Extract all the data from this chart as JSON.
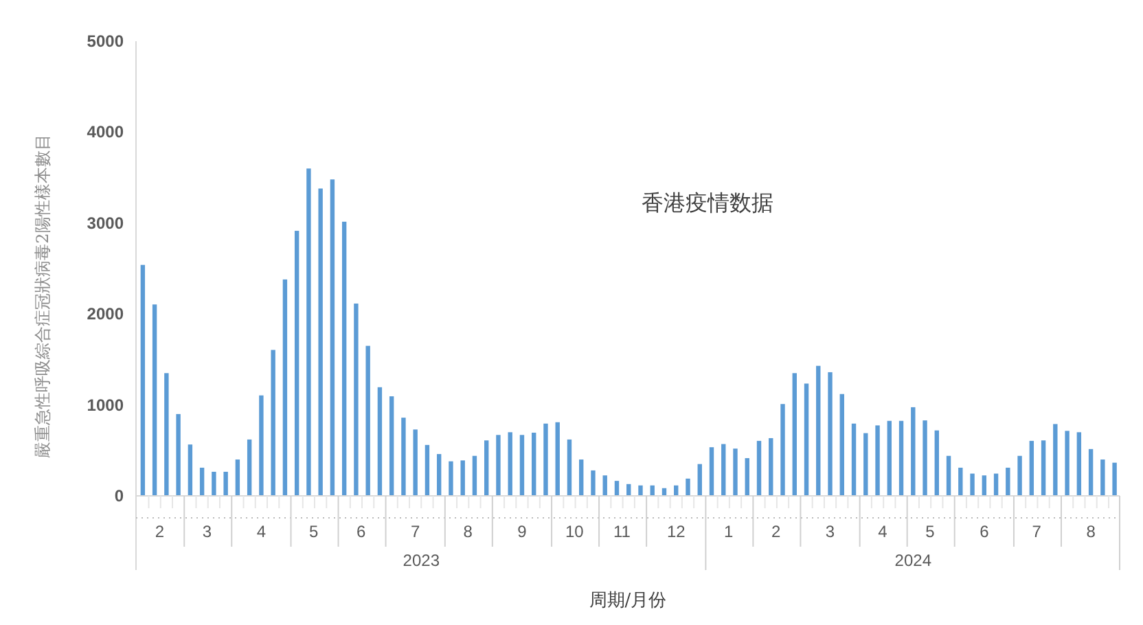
{
  "chart_data": {
    "type": "bar",
    "title": "香港疫情数据",
    "xlabel": "周期/月份",
    "ylabel": "嚴重急性呼吸綜合症冠狀病毒2陽性樣本數目",
    "color": "#5b9bd5",
    "x": [
      "2023-02-04",
      "2023-02-11",
      "2023-02-18",
      "2023-02-25",
      "2023-03-04",
      "2023-03-11",
      "2023-03-18",
      "2023-03-25",
      "2023-04-01",
      "2023-04-08",
      "2023-04-15",
      "2023-04-22",
      "2023-04-29",
      "2023-05-06",
      "2023-05-13",
      "2023-05-20",
      "2023-05-27",
      "2023-06-03",
      "2023-06-10",
      "2023-06-17",
      "2023-06-24",
      "2023-07-01",
      "2023-07-08",
      "2023-07-15",
      "2023-07-22",
      "2023-07-29",
      "2023-08-05",
      "2023-08-12",
      "2023-08-19",
      "2023-08-26",
      "2023-09-02",
      "2023-09-09",
      "2023-09-16",
      "2023-09-23",
      "2023-09-30",
      "2023-10-07",
      "2023-10-14",
      "2023-10-21",
      "2023-10-28",
      "2023-11-04",
      "2023-11-11",
      "2023-11-18",
      "2023-11-25",
      "2023-12-02",
      "2023-12-09",
      "2023-12-16",
      "2023-12-23",
      "2023-12-30",
      "2024-01-06",
      "2024-01-13",
      "2024-01-20",
      "2024-01-27",
      "2024-02-03",
      "2024-02-10",
      "2024-02-17",
      "2024-02-24",
      "2024-03-02",
      "2024-03-09",
      "2024-03-16",
      "2024-03-23",
      "2024-03-30",
      "2024-04-06",
      "2024-04-13",
      "2024-04-20",
      "2024-04-27",
      "2024-05-04",
      "2024-05-11",
      "2024-05-18",
      "2024-05-25",
      "2024-06-01",
      "2024-06-08",
      "2024-06-15",
      "2024-06-22",
      "2024-06-29",
      "2024-07-06",
      "2024-07-13",
      "2024-07-20",
      "2024-07-27",
      "2024-08-03",
      "2024-08-10",
      "2024-08-17",
      "2024-08-24",
      "2024-08-31"
    ],
    "values": [
      2540,
      2105,
      1350,
      900,
      565,
      310,
      265,
      265,
      400,
      620,
      1105,
      1605,
      2380,
      2915,
      3600,
      3380,
      3480,
      3015,
      2115,
      1650,
      1195,
      1095,
      860,
      730,
      560,
      460,
      380,
      390,
      440,
      610,
      670,
      700,
      670,
      695,
      795,
      810,
      620,
      400,
      280,
      225,
      165,
      130,
      115,
      115,
      85,
      115,
      190,
      350,
      535,
      570,
      520,
      415,
      605,
      635,
      1010,
      1350,
      1235,
      1430,
      1360,
      1120,
      795,
      690,
      775,
      825,
      825,
      975,
      830,
      720,
      440,
      310,
      245,
      225,
      245,
      310,
      440,
      605,
      610,
      790,
      715,
      700,
      515,
      400,
      365
    ],
    "xlim": [
      "2023-01-31",
      "2024-09-03"
    ],
    "xticks": [
      {
        "value": "2023-02-14",
        "label": "2"
      },
      {
        "value": "2023-03-14",
        "label": "3"
      },
      {
        "value": "2023-04-15",
        "label": "4"
      },
      {
        "value": "2023-05-16",
        "label": "5"
      },
      {
        "value": "2023-06-13",
        "label": "6"
      },
      {
        "value": "2023-07-15",
        "label": "7"
      },
      {
        "value": "2023-08-15",
        "label": "8"
      },
      {
        "value": "2023-09-16",
        "label": "9"
      },
      {
        "value": "2023-10-17",
        "label": "10"
      },
      {
        "value": "2023-11-14",
        "label": "11"
      },
      {
        "value": "2023-12-16",
        "label": "12"
      },
      {
        "value": "2024-01-16",
        "label": "1"
      },
      {
        "value": "2024-02-13",
        "label": "2"
      },
      {
        "value": "2024-03-16",
        "label": "3"
      },
      {
        "value": "2024-04-16",
        "label": "4"
      },
      {
        "value": "2024-05-14",
        "label": "5"
      },
      {
        "value": "2024-06-15",
        "label": "6"
      },
      {
        "value": "2024-07-16",
        "label": "7"
      },
      {
        "value": "2024-08-17",
        "label": "8"
      }
    ],
    "ylim": [
      0,
      5000
    ],
    "yticks": [
      0,
      1000,
      2000,
      3000,
      4000,
      5000
    ],
    "annotations": [
      "2023",
      "2024"
    ],
    "grid": false
  }
}
